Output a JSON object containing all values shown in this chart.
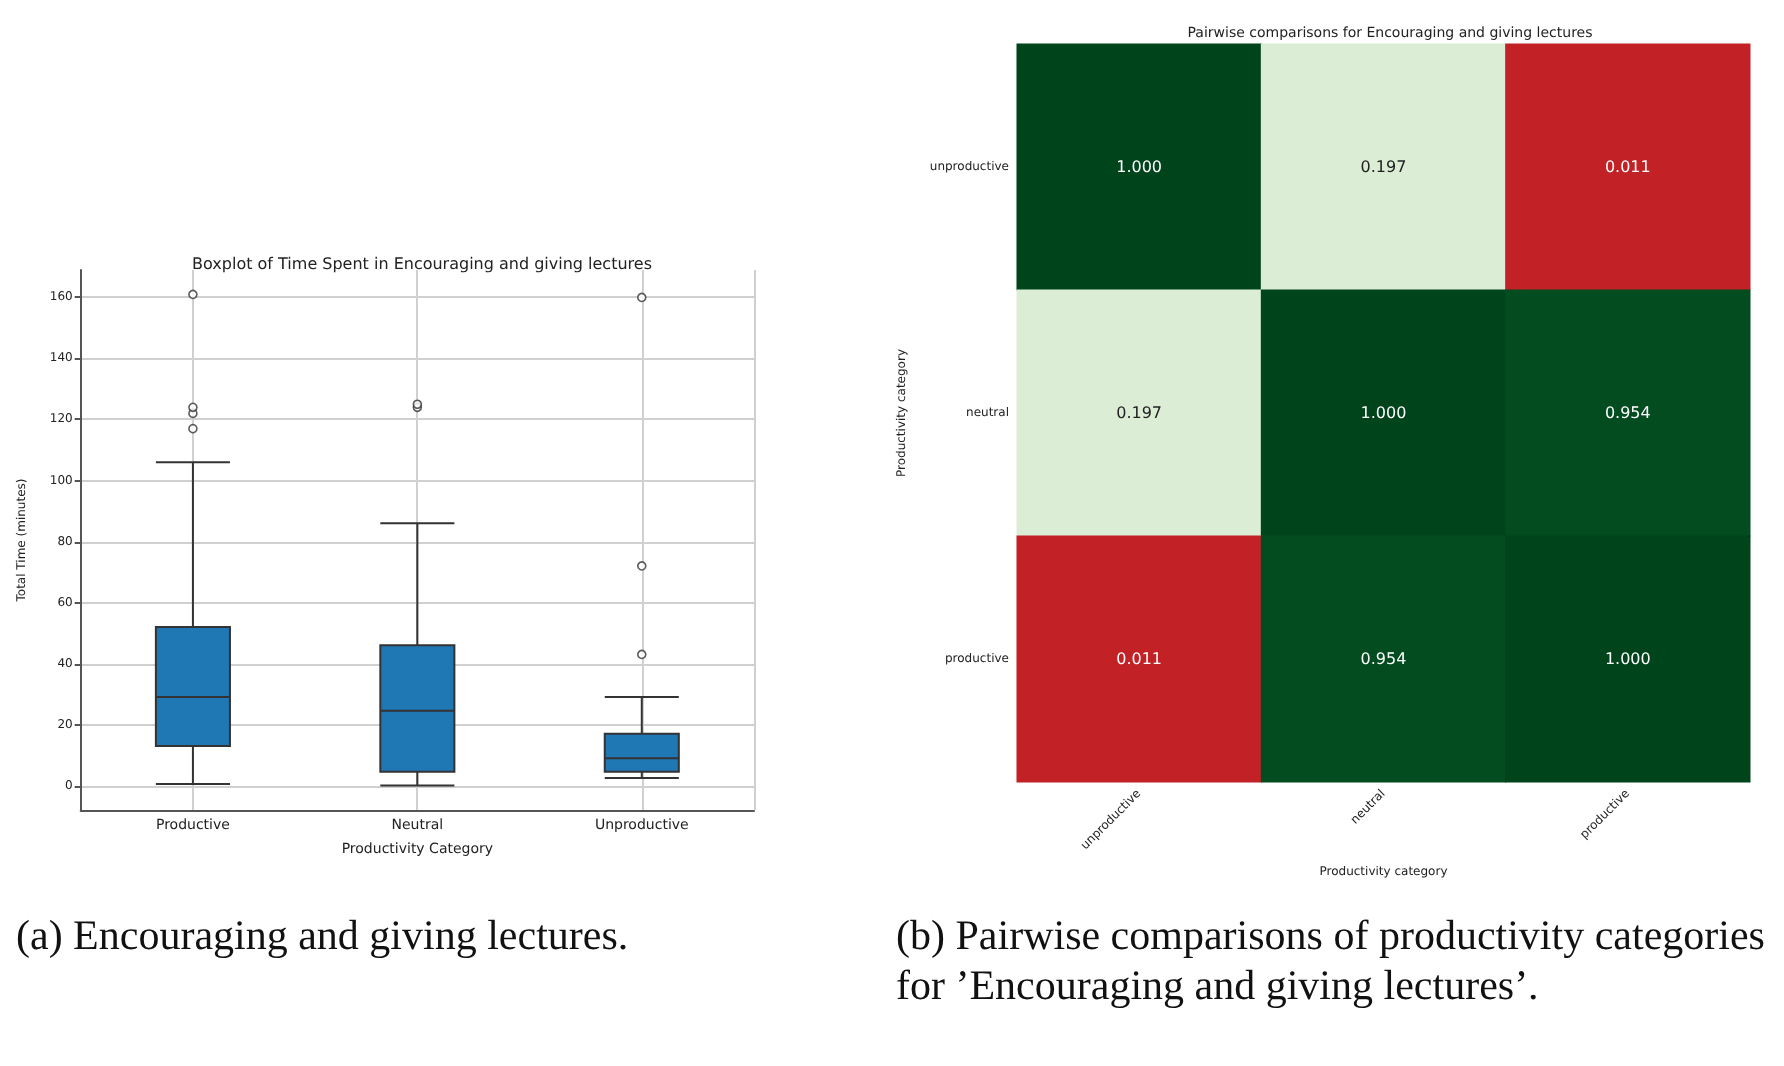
{
  "chart_data": [
    {
      "type": "box",
      "title": "Boxplot of Time Spent in Encouraging and giving lectures",
      "xlabel": "Productivity Category",
      "ylabel": "Total Time (minutes)",
      "categories": [
        "Productive",
        "Neutral",
        "Unproductive"
      ],
      "boxes": [
        {
          "low": 0.5,
          "q1": 13,
          "median": 29,
          "q3": 52,
          "high": 106,
          "outliers": [
            117,
            122,
            124,
            161
          ]
        },
        {
          "low": 0,
          "q1": 4.5,
          "median": 24.5,
          "q3": 46,
          "high": 86,
          "outliers": [
            124,
            125
          ]
        },
        {
          "low": 2.5,
          "q1": 4.5,
          "median": 9,
          "q3": 17,
          "high": 29,
          "outliers": [
            43,
            72,
            160
          ]
        }
      ],
      "color": "#1f77b4",
      "ylim": [
        -8,
        169
      ],
      "yticks": [
        0,
        20,
        40,
        60,
        80,
        100,
        120,
        140,
        160
      ],
      "grid": true,
      "annotations": [
        "(a) Encouraging and giving lectures."
      ]
    },
    {
      "type": "heatmap",
      "title": "Pairwise comparisons for Encouraging and giving lectures",
      "xlabel": "Productivity category",
      "ylabel": "Productivity category",
      "categories": [
        "unproductive",
        "neutral",
        "productive"
      ],
      "y_categories": [
        "unproductive",
        "neutral",
        "productive"
      ],
      "cells": [
        [
          1.0,
          0.197,
          0.011
        ],
        [
          0.197,
          1.0,
          0.954
        ],
        [
          0.011,
          0.954,
          1.0
        ]
      ],
      "cell_labels": [
        [
          "1.000",
          "0.197",
          "0.011"
        ],
        [
          "0.197",
          "1.000",
          "0.954"
        ],
        [
          "0.011",
          "0.954",
          "1.000"
        ]
      ],
      "annotations": [
        "(b) Pairwise comparisons of productivity categories for ’Encouraging and giving lectures’."
      ]
    }
  ]
}
